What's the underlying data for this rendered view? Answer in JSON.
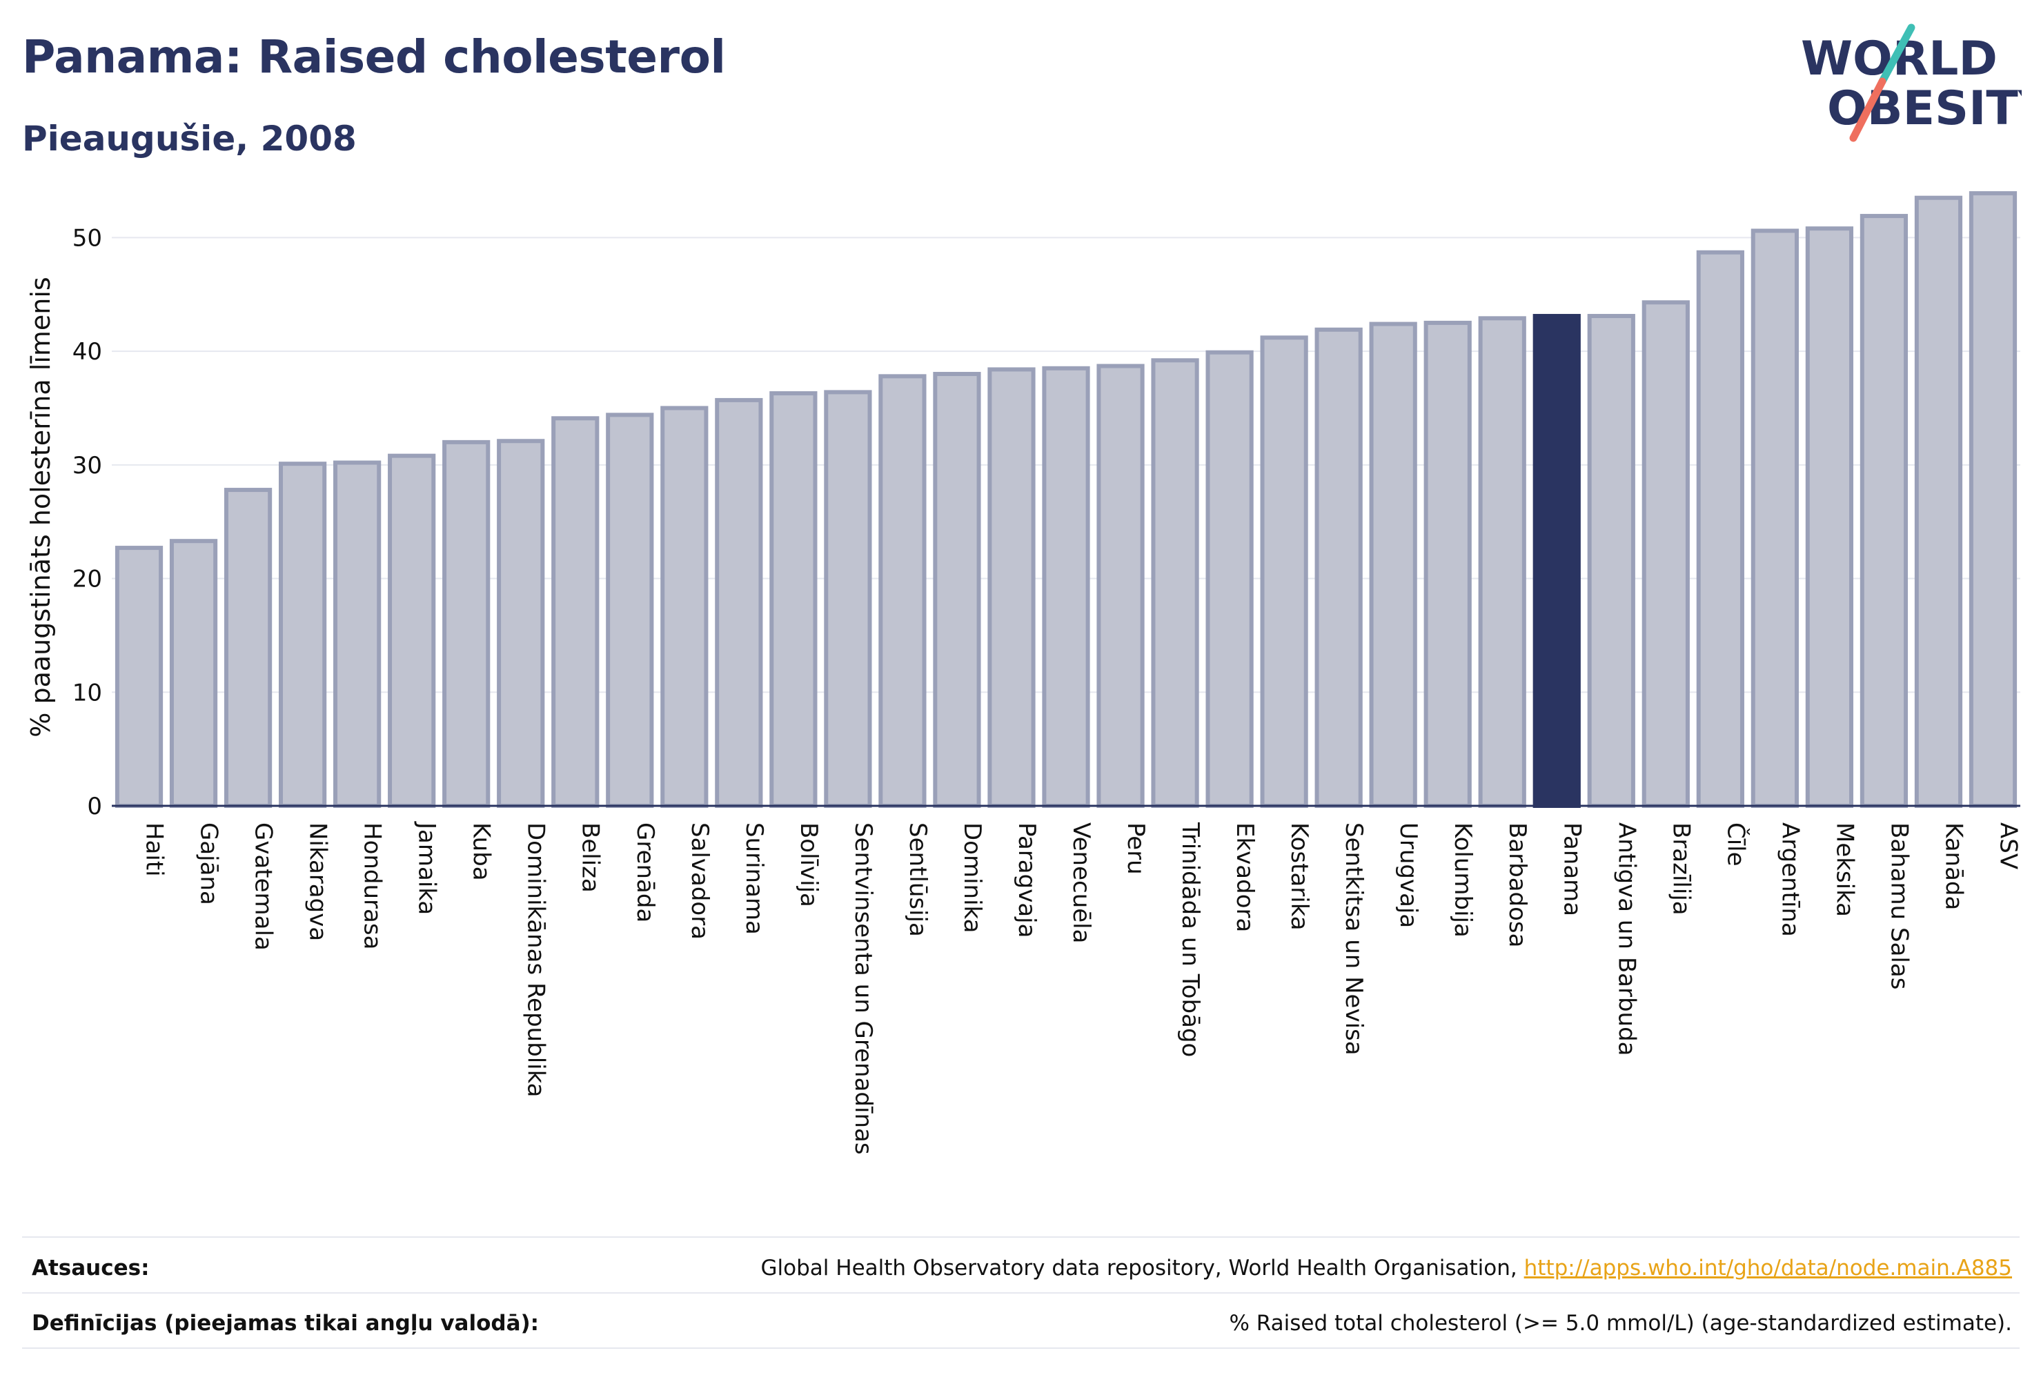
{
  "header": {
    "title": "Panama: Raised cholesterol",
    "subtitle": "Pieaugušie, 2008"
  },
  "logo": {
    "line1": "WORLD",
    "line2": "OBESITY"
  },
  "footer": {
    "sources_label": "Atsauces:",
    "sources_text": "Global Health Observatory data repository, World Health Organisation, ",
    "sources_link": "http://apps.who.int/gho/data/node.main.A885",
    "definitions_label": "Definīcijas (pieejamas tikai angļu valodā):",
    "definitions_text": "% Raised total cholesterol (>= 5.0 mmol/L) (age-standardized estimate)."
  },
  "colors": {
    "bar_fill": "#c0c3d0",
    "bar_stroke": "#9aa0b8",
    "highlight": "#2a3461",
    "title": "#2a3461",
    "logo_slash_teal": "#3fbfb5",
    "logo_slash_coral": "#ef6f5e",
    "link": "#e8a317"
  },
  "chart_data": {
    "type": "bar",
    "ylabel": "% paaugstināts holesterīna līmenis",
    "ylim": [
      0,
      55
    ],
    "yticks": [
      0,
      10,
      20,
      30,
      40,
      50
    ],
    "grid": true,
    "highlight": "Panama",
    "categories": [
      "Haiti",
      "Gajāna",
      "Gvatemala",
      "Nikaragva",
      "Hondurasa",
      "Jamaika",
      "Kuba",
      "Dominikānas Republika",
      "Beliza",
      "Grenāda",
      "Salvadora",
      "Surinama",
      "Bolīvija",
      "Sentvinsenta un Grenadīnas",
      "Sentlūsija",
      "Dominika",
      "Paragvaja",
      "Venecuēla",
      "Peru",
      "Trinidāda un Tobāgo",
      "Ekvadora",
      "Kostarika",
      "Sentkitsa un Nevisa",
      "Urugvaja",
      "Kolumbija",
      "Barbadosa",
      "Panama",
      "Antigva un Barbuda",
      "Brazīlija",
      "Čīle",
      "Argentīna",
      "Meksika",
      "Bahamu Salas",
      "Kanāda",
      "ASV"
    ],
    "values": [
      22.7,
      23.3,
      27.8,
      30.1,
      30.2,
      30.8,
      32.0,
      32.1,
      34.1,
      34.4,
      35.0,
      35.7,
      36.3,
      36.4,
      37.8,
      38.0,
      38.4,
      38.5,
      38.7,
      39.2,
      39.9,
      41.2,
      41.9,
      42.4,
      42.5,
      42.9,
      43.1,
      43.1,
      44.3,
      48.7,
      50.6,
      50.8,
      51.9,
      53.5,
      53.9
    ]
  }
}
